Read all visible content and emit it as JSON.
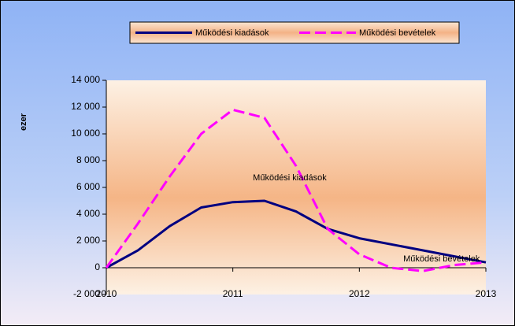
{
  "chart_data": {
    "type": "line",
    "y_label": "ezer",
    "xlim": [
      2010,
      2013
    ],
    "xticks": [
      2010,
      2011,
      2012,
      2013
    ],
    "ylim": [
      -2000,
      14000
    ],
    "yticks": [
      {
        "value": -2000,
        "label": "-2 000"
      },
      0,
      {
        "value": 2000,
        "label": "2 000"
      },
      {
        "value": 4000,
        "label": "4 000"
      },
      {
        "value": 6000,
        "label": "6 000"
      },
      {
        "value": 8000,
        "label": "8 000"
      },
      {
        "value": 10000,
        "label": "10 000"
      },
      {
        "value": 12000,
        "label": "12 000"
      },
      {
        "value": 14000,
        "label": "14 000"
      }
    ],
    "series": [
      {
        "name": "Működési kiadások",
        "color": "#000080",
        "line_style": "solid",
        "x": [
          2010,
          2010.25,
          2010.5,
          2010.75,
          2011,
          2011.25,
          2011.5,
          2011.75,
          2012,
          2012.5,
          2013
        ],
        "values": [
          0,
          1300,
          3100,
          4500,
          4900,
          5000,
          4200,
          2900,
          2200,
          1300,
          400
        ]
      },
      {
        "name": "Működési bevételek",
        "color": "#ff00ff",
        "line_style": "dashed",
        "x": [
          2010,
          2010.25,
          2010.5,
          2010.75,
          2011,
          2011.25,
          2011.5,
          2011.75,
          2012,
          2012.25,
          2012.5,
          2012.75,
          2013
        ],
        "values": [
          0,
          3300,
          6800,
          10000,
          11800,
          11200,
          7600,
          2900,
          1000,
          0,
          -250,
          200,
          400
        ]
      }
    ],
    "annotations": [
      {
        "text": "Működési kiadások",
        "x": 2011.45,
        "y": 6700
      },
      {
        "text": "Működési bevételek",
        "x": 2012.65,
        "y": 650
      }
    ],
    "legend": "top"
  }
}
